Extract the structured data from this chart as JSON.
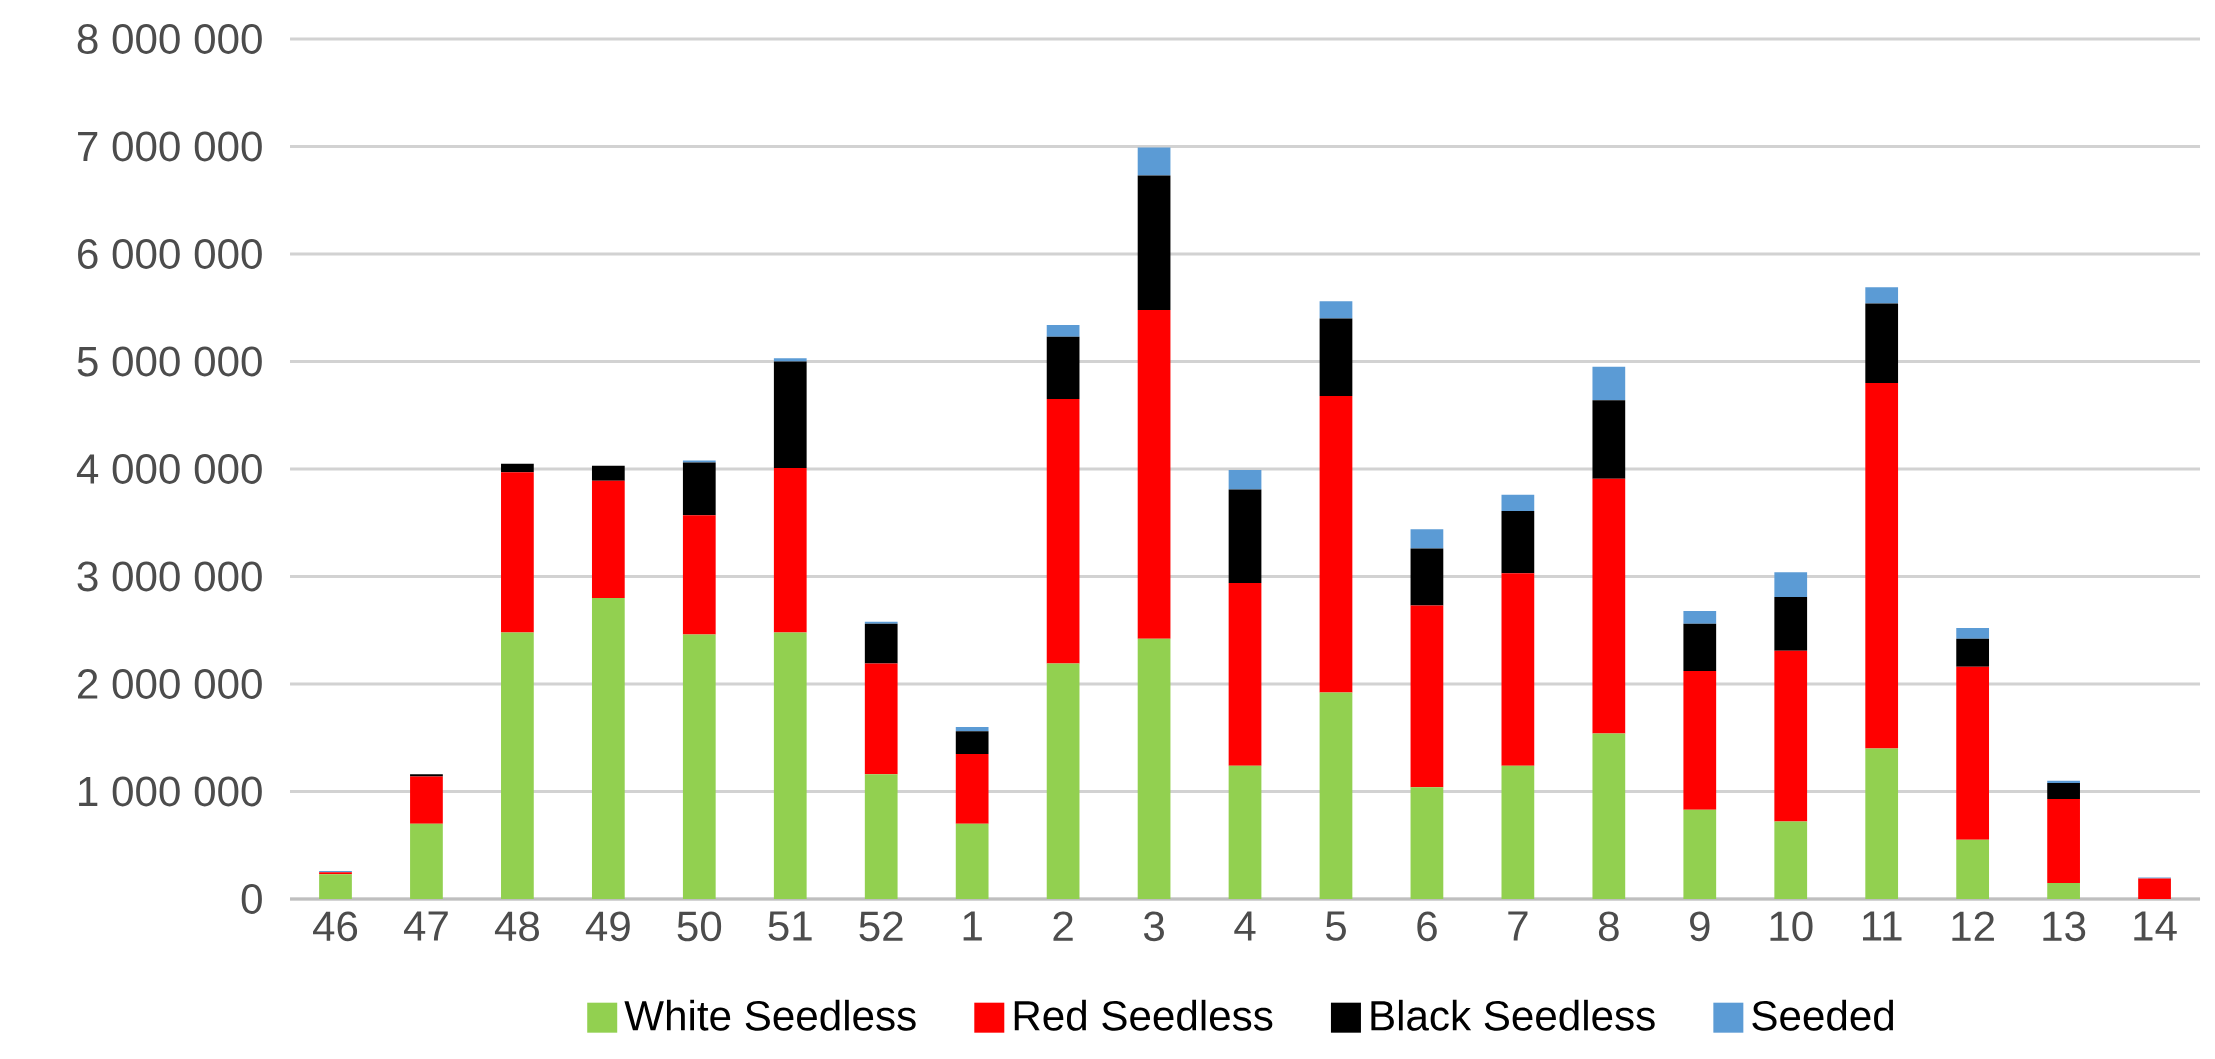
{
  "chart_data": {
    "type": "bar",
    "stacked": true,
    "categories": [
      "46",
      "47",
      "48",
      "49",
      "50",
      "51",
      "52",
      "1",
      "2",
      "3",
      "4",
      "5",
      "6",
      "7",
      "8",
      "9",
      "10",
      "11",
      "12",
      "13",
      "14"
    ],
    "series": [
      {
        "name": "White Seedless",
        "color": "#92d050",
        "values": [
          230000,
          700000,
          2480000,
          2800000,
          2460000,
          2480000,
          1160000,
          700000,
          2190000,
          2420000,
          1240000,
          1920000,
          1040000,
          1240000,
          1540000,
          830000,
          720000,
          1400000,
          550000,
          150000,
          0
        ]
      },
      {
        "name": "Red Seedless",
        "color": "#ff0000",
        "values": [
          20000,
          440000,
          1490000,
          1090000,
          1110000,
          1530000,
          1030000,
          650000,
          2460000,
          3060000,
          1700000,
          2760000,
          1690000,
          1790000,
          2370000,
          1290000,
          1590000,
          3400000,
          1610000,
          780000,
          190000
        ]
      },
      {
        "name": "Black Seedless",
        "color": "#000000",
        "values": [
          0,
          20000,
          80000,
          140000,
          490000,
          990000,
          370000,
          210000,
          580000,
          1250000,
          870000,
          720000,
          530000,
          580000,
          730000,
          440000,
          500000,
          740000,
          260000,
          150000,
          0
        ]
      },
      {
        "name": "Seeded",
        "color": "#5b9bd5",
        "values": [
          10000,
          0,
          0,
          0,
          20000,
          30000,
          20000,
          40000,
          110000,
          260000,
          180000,
          160000,
          180000,
          150000,
          310000,
          120000,
          230000,
          150000,
          100000,
          20000,
          10000
        ]
      }
    ],
    "ylim": [
      0,
      8000000
    ],
    "yticks": [
      {
        "value": 0,
        "label": "0"
      },
      {
        "value": 1000000,
        "label": "1 000 000"
      },
      {
        "value": 2000000,
        "label": "2 000 000"
      },
      {
        "value": 3000000,
        "label": "3 000 000"
      },
      {
        "value": 4000000,
        "label": "4 000 000"
      },
      {
        "value": 5000000,
        "label": "5 000 000"
      },
      {
        "value": 6000000,
        "label": "6 000 000"
      },
      {
        "value": 7000000,
        "label": "7 000 000"
      },
      {
        "value": 8000000,
        "label": "8 000 000"
      }
    ],
    "grid": "y",
    "legend": "bottom"
  }
}
